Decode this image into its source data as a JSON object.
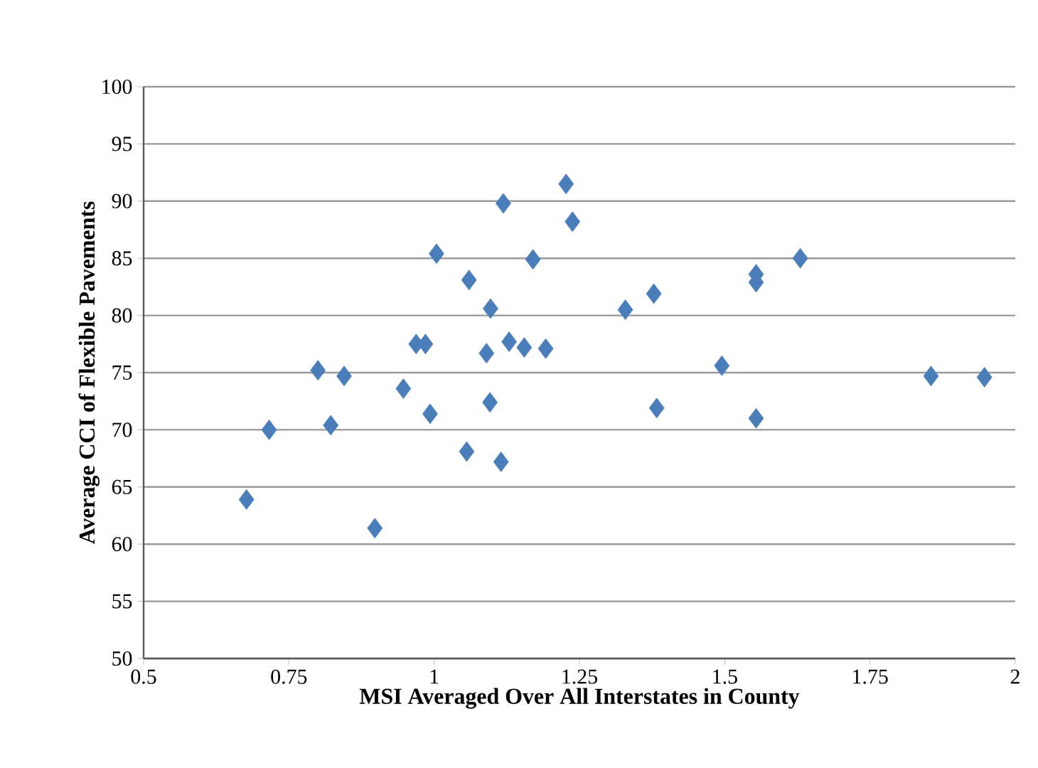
{
  "chart_data": {
    "type": "scatter",
    "xlabel": "MSI Averaged Over All Interstates in County",
    "ylabel": "Average CCI of Flexible Pavements",
    "x": [
      0.677,
      0.716,
      0.8,
      0.845,
      0.822,
      0.898,
      0.947,
      0.969,
      0.985,
      0.993,
      1.004,
      1.056,
      1.06,
      1.097,
      1.09,
      1.096,
      1.115,
      1.119,
      1.129,
      1.155,
      1.192,
      1.17,
      1.227,
      1.238,
      1.329,
      1.378,
      1.383,
      1.495,
      1.554,
      1.554,
      1.554,
      1.63,
      1.855,
      1.947
    ],
    "values": [
      63.9,
      70.0,
      75.2,
      74.7,
      70.4,
      61.4,
      73.6,
      77.5,
      77.5,
      71.4,
      85.4,
      68.1,
      83.1,
      80.6,
      76.7,
      72.4,
      67.2,
      89.8,
      77.7,
      77.2,
      77.1,
      84.9,
      91.5,
      88.2,
      80.5,
      81.9,
      71.9,
      75.6,
      83.6,
      82.9,
      71.0,
      85.0,
      74.7,
      74.6
    ],
    "color": "#4a7ebb",
    "marker": "diamond",
    "xlim": [
      0.5,
      2
    ],
    "ylim": [
      50,
      100
    ],
    "xticks": [
      0.5,
      0.75,
      1,
      1.25,
      1.5,
      1.75,
      2
    ],
    "yticks": [
      50,
      55,
      60,
      65,
      70,
      75,
      80,
      85,
      90,
      95,
      100
    ],
    "grid": "y"
  }
}
